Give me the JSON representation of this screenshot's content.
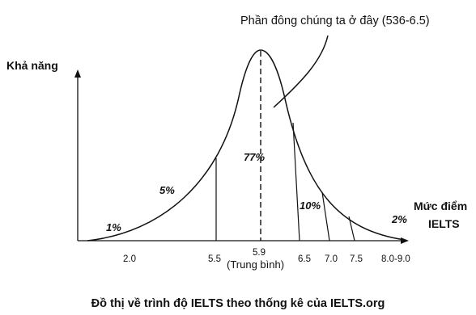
{
  "annotation": "Phần đông chúng ta ở đây (536-6.5)",
  "y_axis_label": "Khả năng",
  "x_axis_label_line1": "Mức điểm",
  "x_axis_label_line2": "IELTS",
  "caption": "Đồ thị về trình độ IELTS theo thống kê của IELTS.org",
  "ticks": {
    "t2": "2.0",
    "t55": "5.5",
    "t59": "5.9",
    "t59_sub": "(Trung bình)",
    "t65": "6.5",
    "t70": "7.0",
    "t75": "7.5",
    "t80": "8.0-9.0"
  },
  "regions": {
    "r1": "1%",
    "r5": "5%",
    "r77": "77%",
    "r10": "10%",
    "r2": "2%"
  }
}
